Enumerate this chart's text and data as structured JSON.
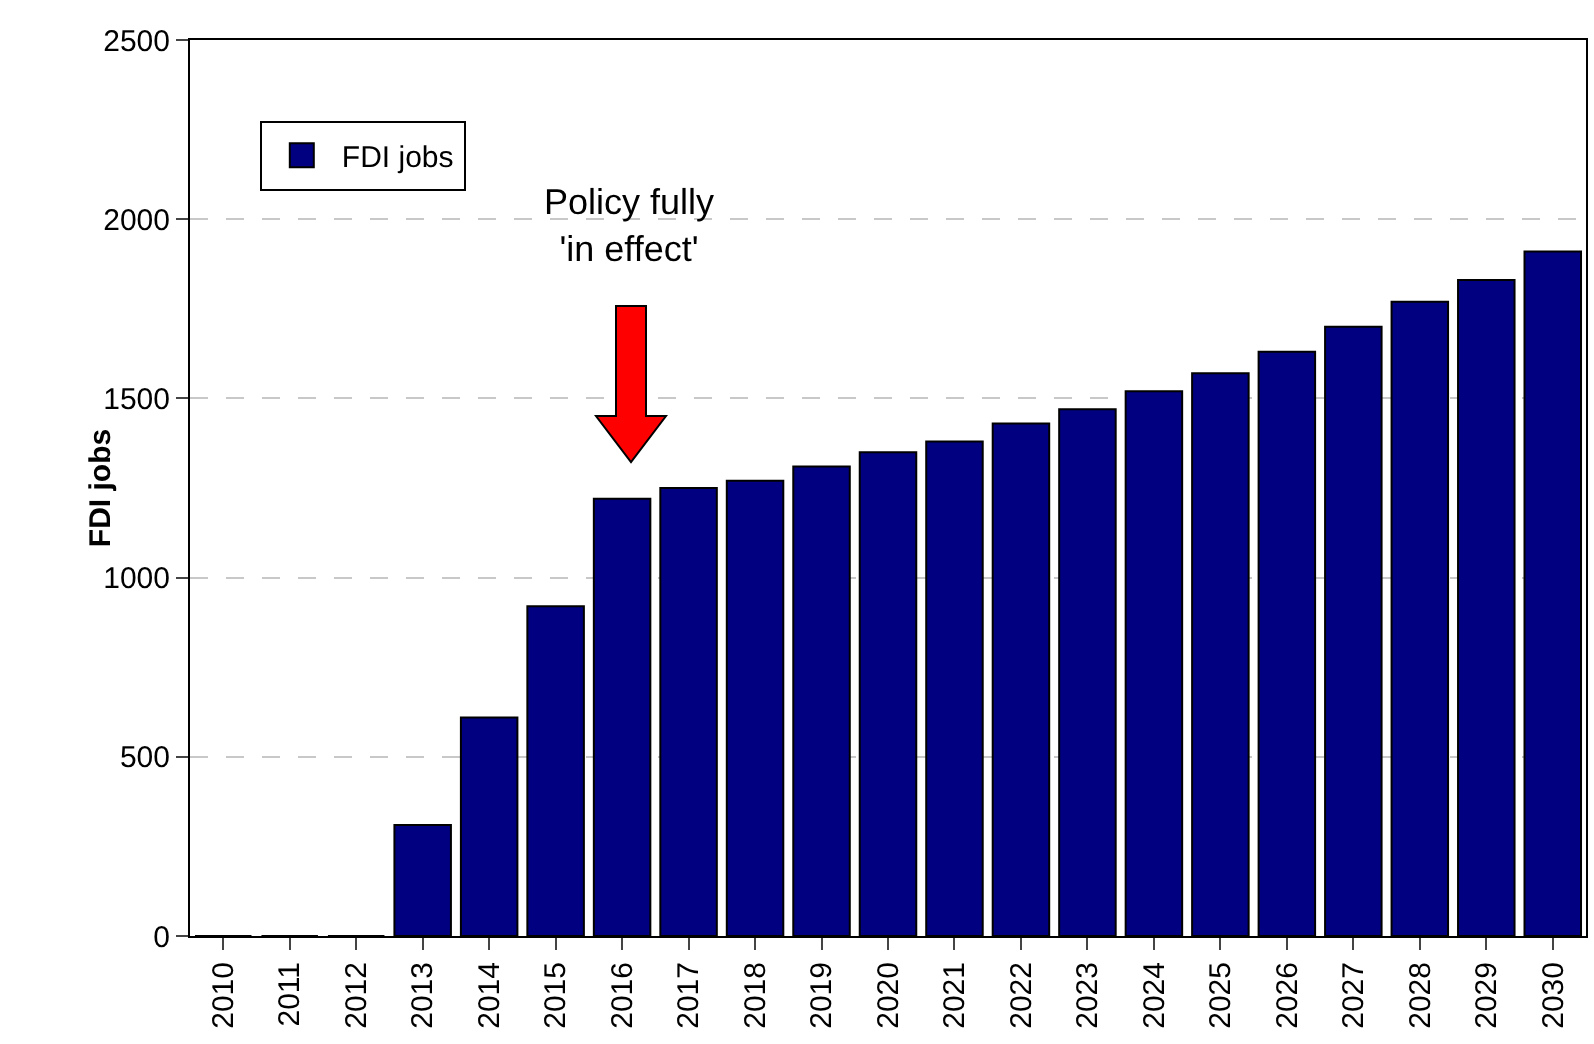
{
  "chart_data": {
    "type": "bar",
    "ylabel": "FDI jobs",
    "categories": [
      "2010",
      "2011",
      "2012",
      "2013",
      "2014",
      "2015",
      "2016",
      "2017",
      "2018",
      "2019",
      "2020",
      "2021",
      "2022",
      "2023",
      "2024",
      "2025",
      "2026",
      "2027",
      "2028",
      "2029",
      "2030"
    ],
    "series": [
      {
        "name": "FDI jobs",
        "color": "#000080",
        "values": [
          0,
          0,
          0,
          310,
          610,
          920,
          1220,
          1250,
          1270,
          1310,
          1350,
          1380,
          1430,
          1470,
          1520,
          1570,
          1630,
          1700,
          1770,
          1830,
          1910
        ]
      }
    ],
    "ylim": [
      0,
      2500
    ],
    "yticks": [
      0,
      500,
      1000,
      1500,
      2000,
      2500
    ],
    "grid": "y",
    "legend": "top left",
    "annotations": [
      "Policy fully\n'in effect'"
    ]
  }
}
